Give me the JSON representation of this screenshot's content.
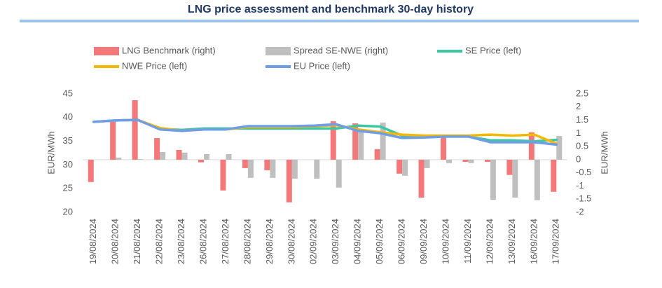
{
  "chart_data": {
    "type": "bar-line",
    "title": "LNG price assessment and benchmark 30-day history",
    "y_label": "EUR/MWh",
    "y2_label": "EUR/MWh",
    "categories": [
      "19/08/2024",
      "20/08/2024",
      "21/08/2024",
      "22/08/2024",
      "23/08/2024",
      "26/08/2024",
      "27/08/2024",
      "28/08/2024",
      "29/08/2024",
      "30/08/2024",
      "02/09/2024",
      "03/09/2024",
      "04/09/2024",
      "05/09/2024",
      "06/09/2024",
      "09/09/2024",
      "10/09/2024",
      "11/09/2024",
      "12/09/2024",
      "13/09/2024",
      "16/09/2024",
      "17/09/2024"
    ],
    "ylim": [
      20,
      45
    ],
    "yticks": [
      20,
      25,
      30,
      35,
      40,
      45
    ],
    "y2lim": [
      -2,
      2.5
    ],
    "y2ticks": [
      -2,
      -1.5,
      -1,
      -0.5,
      0,
      0.5,
      1,
      1.5,
      2,
      2.5
    ],
    "series": [
      {
        "name": "LNG Benchmark (right)",
        "kind": "bar",
        "axis": "y2",
        "color": "#f4787a",
        "values": [
          -0.85,
          1.44,
          2.26,
          0.82,
          0.37,
          -0.1,
          -1.17,
          -0.32,
          -0.4,
          -1.62,
          0,
          1.46,
          1.38,
          0.4,
          -0.53,
          -1.44,
          0.85,
          -0.08,
          -0.08,
          -0.58,
          1.04,
          -1.22
        ]
      },
      {
        "name": "Spread SE-NWE (right)",
        "kind": "bar",
        "axis": "y2",
        "color": "#bfbfbf",
        "values": [
          0,
          0.08,
          0.02,
          0.29,
          0.27,
          0.21,
          0.21,
          -0.69,
          -0.69,
          -0.72,
          -0.72,
          -1.06,
          1.12,
          1.41,
          -0.61,
          -0.32,
          -0.13,
          -0.13,
          -1.52,
          -1.44,
          -1.54,
          0.9
        ]
      },
      {
        "name": "SE Price (left)",
        "kind": "line",
        "color": "#3cc7a0",
        "values": [
          39.1,
          39.4,
          39.5,
          37.6,
          37.4,
          37.7,
          37.7,
          37.7,
          37.7,
          37.7,
          37.7,
          37.7,
          38.3,
          38.1,
          36.2,
          36.0,
          36.0,
          36.0,
          35.2,
          35.2,
          35.0,
          35.3
        ]
      },
      {
        "name": "NWE Price (left)",
        "kind": "line",
        "color": "#f5b800",
        "values": [
          39.1,
          39.4,
          39.5,
          37.8,
          37.2,
          37.5,
          37.5,
          38.0,
          38.0,
          38.0,
          38.2,
          38.4,
          37.5,
          36.9,
          36.4,
          36.2,
          36.2,
          36.2,
          36.4,
          36.2,
          36.4,
          34.5
        ]
      },
      {
        "name": "EU Price (left)",
        "kind": "line",
        "color": "#6f9ee8",
        "values": [
          39.1,
          39.4,
          39.5,
          37.5,
          37.2,
          37.5,
          37.5,
          38.2,
          38.2,
          38.2,
          38.3,
          38.6,
          37.2,
          36.7,
          35.7,
          35.8,
          36.0,
          36.0,
          34.8,
          34.8,
          34.8,
          34.3
        ]
      }
    ]
  }
}
